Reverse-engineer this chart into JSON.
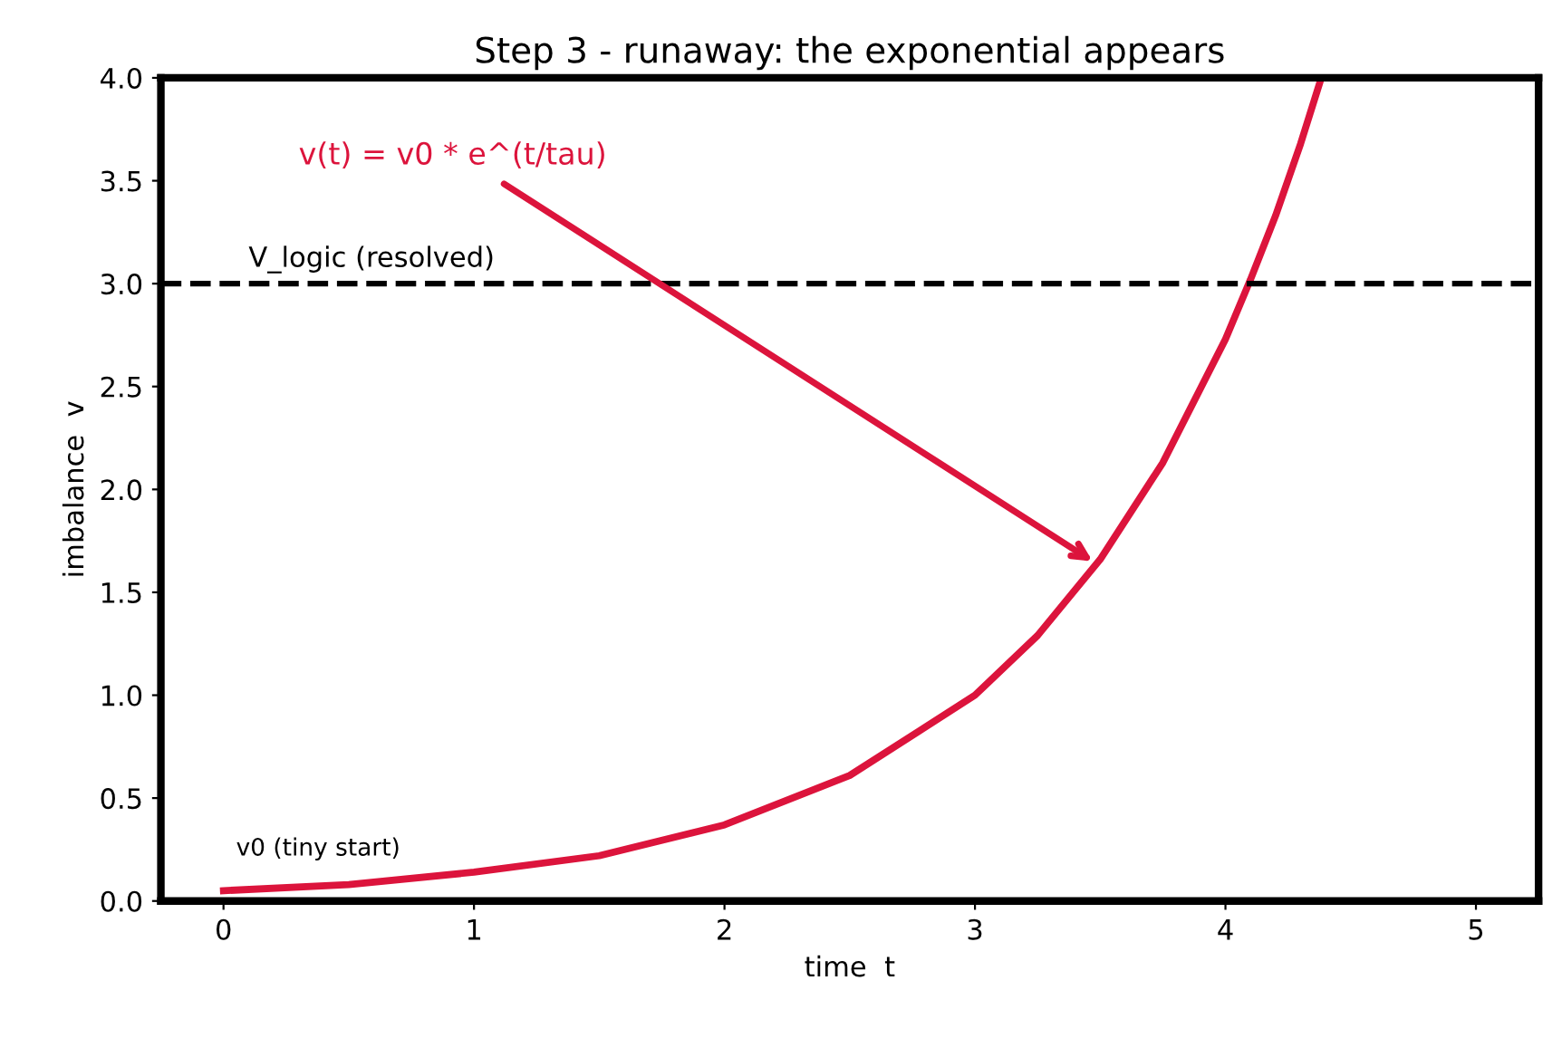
{
  "chart_data": {
    "type": "line",
    "title": "Step 3 - runaway: the exponential appears",
    "xlabel": "time  t",
    "ylabel": "imbalance  v",
    "x": [
      0,
      0.5,
      1,
      1.5,
      2,
      2.5,
      3,
      3.25,
      3.5,
      3.75,
      4,
      4.1,
      4.2,
      4.3,
      4.38
    ],
    "series": [
      {
        "color": "#dc143c",
        "values": [
          0.05,
          0.08,
          0.14,
          0.22,
          0.37,
          0.61,
          1.0,
          1.29,
          1.66,
          2.13,
          2.73,
          3.02,
          3.33,
          3.68,
          3.99
        ]
      }
    ],
    "xlim": [
      -0.25,
      5.25
    ],
    "xticks": [
      0,
      1,
      2,
      3,
      4,
      5
    ],
    "ylim": [
      0,
      4
    ],
    "yticks": [
      {
        "value": 0,
        "label": "0.0"
      },
      0.5,
      {
        "value": 1,
        "label": "1.0"
      },
      1.5,
      {
        "value": 2,
        "label": "2.0"
      },
      2.5,
      {
        "value": 3,
        "label": "3.0"
      },
      3.5,
      {
        "value": 4,
        "label": "4.0"
      }
    ],
    "ref_lines": [
      {
        "axis": "y",
        "value": 3.0,
        "label": "V_logic (resolved)",
        "color": "#000000",
        "line_style": "dashed"
      }
    ],
    "annotations": [
      {
        "text": "v(t) = v0 * e^(t/tau)",
        "x": 3.47,
        "y": 1.65
      },
      {
        "text": "v0 (tiny start)",
        "x": 0,
        "y": 0.05
      }
    ],
    "grid": false,
    "marker": "none",
    "line_style": "solid",
    "legend": false
  }
}
